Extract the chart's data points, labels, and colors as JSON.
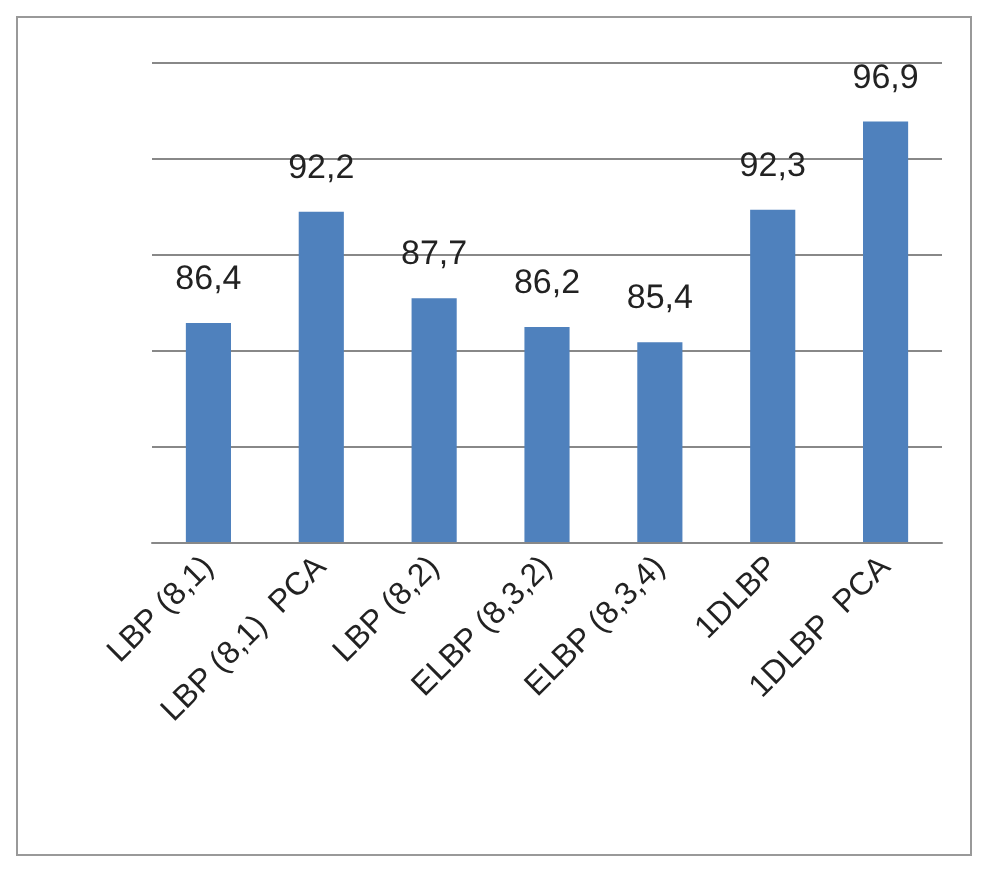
{
  "chart_data": {
    "type": "bar",
    "categories": [
      "LBP (8,1)",
      "LBP (8,1)  PCA",
      "LBP (8,2)",
      "ELBP (8,3,2)",
      "ELBP (8,3,4)",
      "1DLBP",
      "1DLBP  PCA"
    ],
    "values": [
      86.4,
      92.2,
      87.7,
      86.2,
      85.4,
      92.3,
      96.9
    ],
    "value_labels": [
      "86,4",
      "92,2",
      "87,7",
      "86,2",
      "85,4",
      "92,3",
      "96,9"
    ],
    "color": "#4f81bd",
    "ylim": [
      75,
      100
    ],
    "yticks": [
      75,
      80,
      85,
      90,
      95,
      100
    ],
    "grid": "y",
    "tick_labels": "x"
  }
}
